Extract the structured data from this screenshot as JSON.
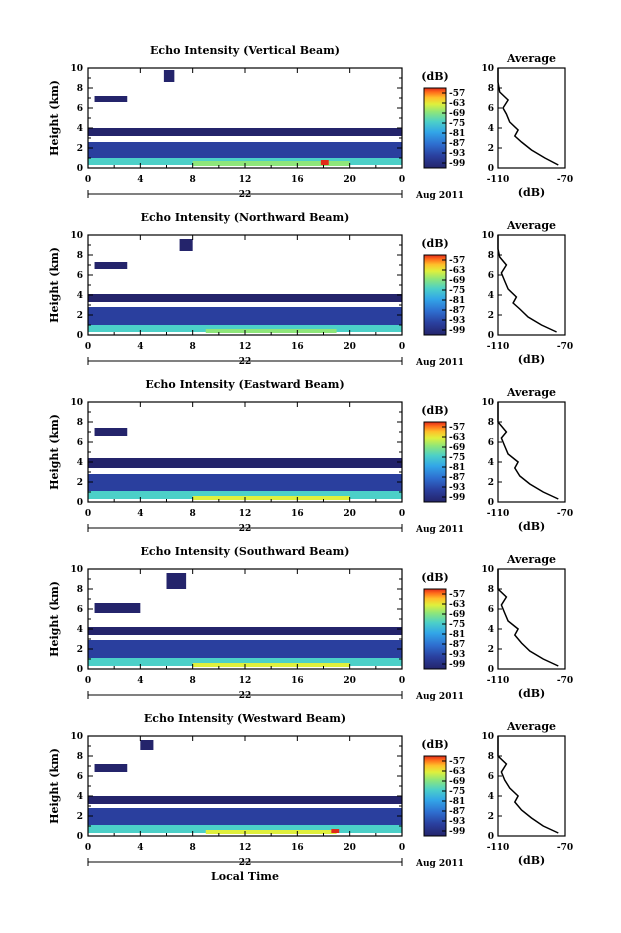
{
  "figure": {
    "xlabel": "Local Time",
    "date_label": "Aug 2011",
    "day_label": "22",
    "ylabel": "Height (km)",
    "colorbar_unit": "(dB)",
    "average_title": "Average",
    "average_xlabel": "(dB)",
    "colorbar_ticks": [
      "-57",
      "-63",
      "-69",
      "-75",
      "-81",
      "-87",
      "-93",
      "-99"
    ],
    "time_ticks": [
      "0",
      "4",
      "8",
      "12",
      "16",
      "20",
      "0"
    ],
    "height_ticks": [
      "0",
      "2",
      "4",
      "6",
      "8",
      "10"
    ],
    "avg_ticks": [
      "-110",
      "-70"
    ],
    "colormap": [
      "#24246b",
      "#2a3f9e",
      "#2e6fd0",
      "#32a6e8",
      "#4cd0c8",
      "#8ee67a",
      "#e0f03c",
      "#ffc02a",
      "#ff6a1a",
      "#e02a1a"
    ]
  },
  "chart_data": [
    {
      "type": "heatmap",
      "title": "Echo Intensity (Vertical Beam)",
      "x": [
        0,
        24
      ],
      "ylim": [
        0,
        10
      ],
      "clim": [
        -99,
        -57
      ],
      "cells": [
        {
          "t": [
            0,
            24
          ],
          "h": [
            0.3,
            1.0
          ],
          "level": 4
        },
        {
          "t": [
            8,
            20
          ],
          "h": [
            0.2,
            0.7
          ],
          "level": 5
        },
        {
          "t": [
            0,
            24
          ],
          "h": [
            1.0,
            2.6
          ],
          "level": 1
        },
        {
          "t": [
            0,
            24
          ],
          "h": [
            3.2,
            4.0
          ],
          "level": 0
        },
        {
          "t": [
            0.5,
            3
          ],
          "h": [
            6.6,
            7.2
          ],
          "level": 0
        },
        {
          "t": [
            5.8,
            6.6
          ],
          "h": [
            8.6,
            9.8
          ],
          "level": 0
        },
        {
          "t": [
            17.8,
            18.4
          ],
          "h": [
            0.3,
            0.8
          ],
          "level": 9
        }
      ],
      "average": {
        "xlim": [
          -110,
          -70
        ],
        "profile": [
          [
            -74,
            0.3
          ],
          [
            -82,
            1.0
          ],
          [
            -90,
            1.8
          ],
          [
            -96,
            2.6
          ],
          [
            -100,
            3.2
          ],
          [
            -98,
            3.8
          ],
          [
            -103,
            4.6
          ],
          [
            -105,
            5.4
          ],
          [
            -107,
            6.0
          ],
          [
            -104,
            6.8
          ],
          [
            -109,
            7.6
          ],
          [
            -110,
            8.6
          ],
          [
            -112,
            10
          ]
        ]
      }
    },
    {
      "type": "heatmap",
      "title": "Echo Intensity (Northward Beam)",
      "x": [
        0,
        24
      ],
      "ylim": [
        0,
        10
      ],
      "clim": [
        -99,
        -57
      ],
      "cells": [
        {
          "t": [
            0,
            24
          ],
          "h": [
            0.3,
            1.0
          ],
          "level": 4
        },
        {
          "t": [
            9,
            19
          ],
          "h": [
            0.2,
            0.6
          ],
          "level": 5
        },
        {
          "t": [
            0,
            24
          ],
          "h": [
            1.0,
            2.8
          ],
          "level": 1
        },
        {
          "t": [
            0,
            24
          ],
          "h": [
            3.3,
            4.1
          ],
          "level": 0
        },
        {
          "t": [
            0.5,
            3
          ],
          "h": [
            6.6,
            7.3
          ],
          "level": 0
        },
        {
          "t": [
            7,
            8
          ],
          "h": [
            8.4,
            9.6
          ],
          "level": 0
        }
      ],
      "average": {
        "xlim": [
          -110,
          -70
        ],
        "profile": [
          [
            -75,
            0.3
          ],
          [
            -84,
            1.0
          ],
          [
            -92,
            1.8
          ],
          [
            -97,
            2.6
          ],
          [
            -101,
            3.2
          ],
          [
            -99,
            3.8
          ],
          [
            -104,
            4.6
          ],
          [
            -106,
            5.4
          ],
          [
            -108,
            6.2
          ],
          [
            -105,
            7.0
          ],
          [
            -109,
            7.8
          ],
          [
            -111,
            8.6
          ],
          [
            -112,
            10
          ]
        ]
      }
    },
    {
      "type": "heatmap",
      "title": "Echo Intensity (Eastward Beam)",
      "x": [
        0,
        24
      ],
      "ylim": [
        0,
        10
      ],
      "clim": [
        -99,
        -57
      ],
      "cells": [
        {
          "t": [
            0,
            24
          ],
          "h": [
            0.3,
            1.1
          ],
          "level": 4
        },
        {
          "t": [
            8,
            20
          ],
          "h": [
            0.2,
            0.6
          ],
          "level": 6
        },
        {
          "t": [
            0,
            24
          ],
          "h": [
            1.1,
            2.8
          ],
          "level": 1
        },
        {
          "t": [
            0,
            24
          ],
          "h": [
            3.4,
            4.4
          ],
          "level": 0
        },
        {
          "t": [
            0.5,
            3
          ],
          "h": [
            6.6,
            7.4
          ],
          "level": 0
        }
      ],
      "average": {
        "xlim": [
          -110,
          -70
        ],
        "profile": [
          [
            -74,
            0.3
          ],
          [
            -83,
            1.0
          ],
          [
            -91,
            1.8
          ],
          [
            -97,
            2.6
          ],
          [
            -100,
            3.4
          ],
          [
            -98,
            4.0
          ],
          [
            -104,
            4.8
          ],
          [
            -106,
            5.6
          ],
          [
            -108,
            6.4
          ],
          [
            -105,
            7.0
          ],
          [
            -110,
            8.0
          ],
          [
            -111,
            8.8
          ],
          [
            -112,
            10
          ]
        ]
      }
    },
    {
      "type": "heatmap",
      "title": "Echo Intensity (Southward Beam)",
      "x": [
        0,
        24
      ],
      "ylim": [
        0,
        10
      ],
      "clim": [
        -99,
        -57
      ],
      "cells": [
        {
          "t": [
            0,
            24
          ],
          "h": [
            0.3,
            1.1
          ],
          "level": 4
        },
        {
          "t": [
            8,
            20
          ],
          "h": [
            0.2,
            0.6
          ],
          "level": 6
        },
        {
          "t": [
            0,
            24
          ],
          "h": [
            1.1,
            2.9
          ],
          "level": 1
        },
        {
          "t": [
            0,
            24
          ],
          "h": [
            3.4,
            4.2
          ],
          "level": 0
        },
        {
          "t": [
            0.5,
            4
          ],
          "h": [
            5.6,
            6.6
          ],
          "level": 0
        },
        {
          "t": [
            6,
            7.5
          ],
          "h": [
            8.0,
            9.6
          ],
          "level": 0
        }
      ],
      "average": {
        "xlim": [
          -110,
          -70
        ],
        "profile": [
          [
            -74,
            0.3
          ],
          [
            -83,
            1.0
          ],
          [
            -91,
            1.8
          ],
          [
            -96,
            2.6
          ],
          [
            -100,
            3.4
          ],
          [
            -98,
            4.0
          ],
          [
            -104,
            4.8
          ],
          [
            -106,
            5.6
          ],
          [
            -108,
            6.4
          ],
          [
            -105,
            7.2
          ],
          [
            -110,
            8.0
          ],
          [
            -111,
            8.8
          ],
          [
            -112,
            10
          ]
        ]
      }
    },
    {
      "type": "heatmap",
      "title": "Echo Intensity (Westward Beam)",
      "x": [
        0,
        24
      ],
      "ylim": [
        0,
        10
      ],
      "clim": [
        -99,
        -57
      ],
      "cells": [
        {
          "t": [
            0,
            24
          ],
          "h": [
            0.3,
            1.1
          ],
          "level": 4
        },
        {
          "t": [
            9,
            19
          ],
          "h": [
            0.2,
            0.6
          ],
          "level": 6
        },
        {
          "t": [
            0,
            24
          ],
          "h": [
            1.1,
            2.8
          ],
          "level": 1
        },
        {
          "t": [
            0,
            24
          ],
          "h": [
            3.2,
            4.0
          ],
          "level": 0
        },
        {
          "t": [
            0.5,
            3
          ],
          "h": [
            6.4,
            7.2
          ],
          "level": 0
        },
        {
          "t": [
            4,
            5
          ],
          "h": [
            8.6,
            9.6
          ],
          "level": 0
        },
        {
          "t": [
            18.6,
            19.2
          ],
          "h": [
            0.3,
            0.7
          ],
          "level": 9
        }
      ],
      "average": {
        "xlim": [
          -110,
          -70
        ],
        "profile": [
          [
            -74,
            0.3
          ],
          [
            -83,
            1.0
          ],
          [
            -90,
            1.8
          ],
          [
            -96,
            2.6
          ],
          [
            -100,
            3.4
          ],
          [
            -98,
            4.0
          ],
          [
            -103,
            4.8
          ],
          [
            -106,
            5.6
          ],
          [
            -108,
            6.4
          ],
          [
            -105,
            7.2
          ],
          [
            -110,
            8.0
          ],
          [
            -111,
            8.8
          ],
          [
            -112,
            10
          ]
        ]
      }
    }
  ]
}
